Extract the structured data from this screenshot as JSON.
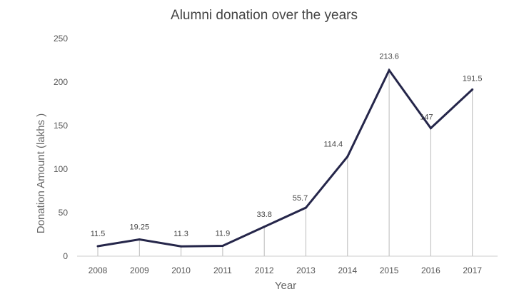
{
  "chart_data": {
    "type": "line",
    "title": "Alumni donation over the years",
    "xlabel": "Year",
    "ylabel": "Donation Amount (lakhs )",
    "categories": [
      "2008",
      "2009",
      "2010",
      "2011",
      "2012",
      "2013",
      "2014",
      "2015",
      "2016",
      "2017"
    ],
    "values": [
      11.5,
      19.25,
      11.3,
      11.9,
      33.8,
      55.7,
      114.4,
      213.6,
      147,
      191.5
    ],
    "data_labels": [
      "11.5",
      "19.25",
      "11.3",
      "11.9",
      "33.8",
      "55.7",
      "114.4",
      "213.6",
      "147",
      "191.5"
    ],
    "yticks": [
      "0",
      "50",
      "100",
      "150",
      "200",
      "250"
    ],
    "ylim": [
      0,
      250
    ],
    "grid": false,
    "drop_lines": true,
    "line_color": "#25264a",
    "drop_line_color": "#bbbbbb"
  }
}
